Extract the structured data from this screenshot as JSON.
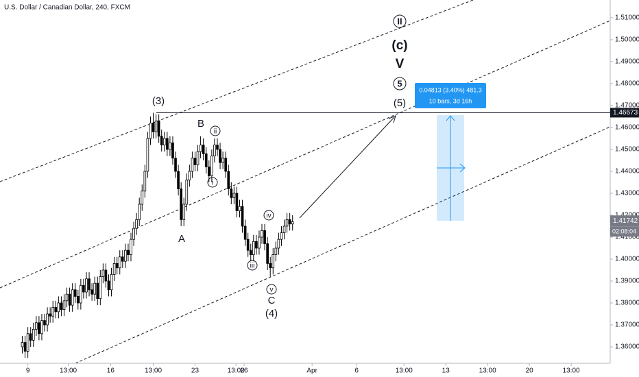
{
  "chart_data": {
    "type": "candlestick",
    "title": "U.S. Dollar / Canadian Dollar, 240, FXCM",
    "open": [
      1.36,
      1.362,
      1.358,
      1.366,
      1.363,
      1.368,
      1.371,
      1.366,
      1.372,
      1.37,
      1.375,
      1.374,
      1.378,
      1.376,
      1.38,
      1.377,
      1.381,
      1.384,
      1.379,
      1.386,
      1.383,
      1.38,
      1.388,
      1.385,
      1.391,
      1.386,
      1.384,
      1.389,
      1.382,
      1.392,
      1.395,
      1.39,
      1.386,
      1.393,
      1.398,
      1.396,
      1.401,
      1.399,
      1.404,
      1.402,
      1.409,
      1.414,
      1.418,
      1.425,
      1.431,
      1.44,
      1.455,
      1.462,
      1.458,
      1.463,
      1.456,
      1.452,
      1.455,
      1.45,
      1.453,
      1.446,
      1.44,
      1.432,
      1.418,
      1.425,
      1.436,
      1.44,
      1.446,
      1.443,
      1.449,
      1.452,
      1.448,
      1.442,
      1.438,
      1.447,
      1.452,
      1.45,
      1.444,
      1.446,
      1.44,
      1.432,
      1.428,
      1.43,
      1.422,
      1.424,
      1.415,
      1.409,
      1.404,
      1.402,
      1.408,
      1.405,
      1.41,
      1.413,
      1.407,
      1.398,
      1.396,
      1.402,
      1.405,
      1.409,
      1.412,
      1.415,
      1.418,
      1.416
    ],
    "high": [
      1.365,
      1.365,
      1.369,
      1.369,
      1.371,
      1.374,
      1.374,
      1.375,
      1.375,
      1.378,
      1.378,
      1.381,
      1.381,
      1.383,
      1.383,
      1.384,
      1.387,
      1.387,
      1.389,
      1.389,
      1.386,
      1.391,
      1.391,
      1.394,
      1.394,
      1.389,
      1.392,
      1.392,
      1.395,
      1.398,
      1.398,
      1.393,
      1.396,
      1.401,
      1.401,
      1.404,
      1.404,
      1.407,
      1.407,
      1.412,
      1.417,
      1.421,
      1.428,
      1.434,
      1.443,
      1.458,
      1.465,
      1.4667,
      1.466,
      1.466,
      1.459,
      1.458,
      1.458,
      1.456,
      1.456,
      1.449,
      1.443,
      1.435,
      1.428,
      1.439,
      1.443,
      1.449,
      1.449,
      1.452,
      1.456,
      1.455,
      1.451,
      1.445,
      1.45,
      1.455,
      1.455,
      1.453,
      1.449,
      1.449,
      1.443,
      1.435,
      1.433,
      1.433,
      1.427,
      1.427,
      1.418,
      1.412,
      1.407,
      1.411,
      1.411,
      1.413,
      1.416,
      1.416,
      1.41,
      1.401,
      1.405,
      1.408,
      1.412,
      1.415,
      1.418,
      1.421,
      1.421,
      1.42
    ],
    "low": [
      1.357,
      1.355,
      1.355,
      1.36,
      1.36,
      1.365,
      1.363,
      1.363,
      1.367,
      1.367,
      1.371,
      1.371,
      1.373,
      1.373,
      1.374,
      1.374,
      1.378,
      1.376,
      1.376,
      1.38,
      1.377,
      1.377,
      1.382,
      1.382,
      1.383,
      1.381,
      1.381,
      1.379,
      1.379,
      1.389,
      1.387,
      1.383,
      1.383,
      1.39,
      1.393,
      1.393,
      1.396,
      1.396,
      1.399,
      1.399,
      1.406,
      1.411,
      1.415,
      1.422,
      1.428,
      1.437,
      1.452,
      1.455,
      1.455,
      1.453,
      1.449,
      1.449,
      1.447,
      1.447,
      1.443,
      1.437,
      1.429,
      1.415,
      1.415,
      1.422,
      1.433,
      1.437,
      1.44,
      1.44,
      1.446,
      1.445,
      1.439,
      1.435,
      1.435,
      1.444,
      1.447,
      1.441,
      1.441,
      1.437,
      1.429,
      1.425,
      1.425,
      1.419,
      1.419,
      1.412,
      1.406,
      1.401,
      1.399,
      1.399,
      1.402,
      1.402,
      1.407,
      1.404,
      1.395,
      1.392,
      1.393,
      1.399,
      1.402,
      1.406,
      1.409,
      1.412,
      1.413,
      1.413
    ],
    "close": [
      1.362,
      1.358,
      1.366,
      1.363,
      1.368,
      1.371,
      1.366,
      1.372,
      1.37,
      1.375,
      1.374,
      1.378,
      1.376,
      1.38,
      1.377,
      1.381,
      1.384,
      1.379,
      1.386,
      1.383,
      1.38,
      1.388,
      1.385,
      1.391,
      1.386,
      1.384,
      1.389,
      1.382,
      1.392,
      1.395,
      1.39,
      1.386,
      1.393,
      1.398,
      1.396,
      1.401,
      1.399,
      1.404,
      1.402,
      1.409,
      1.414,
      1.418,
      1.425,
      1.431,
      1.44,
      1.455,
      1.462,
      1.458,
      1.463,
      1.456,
      1.452,
      1.455,
      1.45,
      1.453,
      1.446,
      1.44,
      1.432,
      1.418,
      1.425,
      1.436,
      1.44,
      1.446,
      1.443,
      1.449,
      1.452,
      1.448,
      1.442,
      1.438,
      1.447,
      1.452,
      1.45,
      1.444,
      1.446,
      1.44,
      1.432,
      1.428,
      1.43,
      1.422,
      1.424,
      1.415,
      1.409,
      1.404,
      1.402,
      1.408,
      1.405,
      1.41,
      1.413,
      1.407,
      1.398,
      1.396,
      1.402,
      1.405,
      1.409,
      1.412,
      1.415,
      1.418,
      1.416,
      1.417
    ],
    "up_color": "#ffffff",
    "down_color": "#000000",
    "xlim": [
      -8,
      211
    ],
    "xticks": [
      {
        "value": 2,
        "label": "9"
      },
      {
        "value": 16.5,
        "label": "13:00"
      },
      {
        "value": 31.7,
        "label": "16"
      },
      {
        "value": 47,
        "label": "13:00"
      },
      {
        "value": 62,
        "label": "23"
      },
      {
        "value": 76.7,
        "label": "13:00"
      },
      {
        "value": 79.6,
        "label": "26"
      },
      {
        "value": 104,
        "label": "Apr"
      },
      {
        "value": 120,
        "label": "6"
      },
      {
        "value": 137,
        "label": "13:00"
      },
      {
        "value": 152,
        "label": "13"
      },
      {
        "value": 167,
        "label": "13:00"
      },
      {
        "value": 182,
        "label": "20"
      },
      {
        "value": 197,
        "label": "13:00"
      }
    ],
    "ylim": [
      1.3525,
      1.5181
    ],
    "yticks": [
      {
        "value": 1.36,
        "label": "1.36000"
      },
      {
        "value": 1.37,
        "label": "1.37000"
      },
      {
        "value": 1.38,
        "label": "1.38000"
      },
      {
        "value": 1.39,
        "label": "1.39000"
      },
      {
        "value": 1.4,
        "label": "1.40000"
      },
      {
        "value": 1.41,
        "label": "1.41000"
      },
      {
        "value": 1.42,
        "label": "1.42000"
      },
      {
        "value": 1.43,
        "label": "1.43000"
      },
      {
        "value": 1.44,
        "label": "1.44000"
      },
      {
        "value": 1.45,
        "label": "1.45000"
      },
      {
        "value": 1.46,
        "label": "1.46000"
      },
      {
        "value": 1.47,
        "label": "1.47000"
      },
      {
        "value": 1.48,
        "label": "1.48000"
      },
      {
        "value": 1.49,
        "label": "1.49000"
      },
      {
        "value": 1.5,
        "label": "1.50000"
      },
      {
        "value": 1.51,
        "label": "1.51000"
      }
    ],
    "horizontal_line": {
      "value": 1.46673,
      "label": "1.46673"
    },
    "last_price": {
      "value": 1.41742,
      "label": "1.41742"
    },
    "countdown": "02:08:04",
    "measure": {
      "change": "0.04813 (3.40%) 481.3",
      "span": "10 bars, 3d 16h"
    },
    "annotations": [
      "(3)",
      "B",
      "ii",
      "i",
      "A",
      "iv",
      "iii",
      "v",
      "C",
      "(4)",
      "(5)",
      "5",
      "V",
      "(c)",
      "II"
    ]
  }
}
